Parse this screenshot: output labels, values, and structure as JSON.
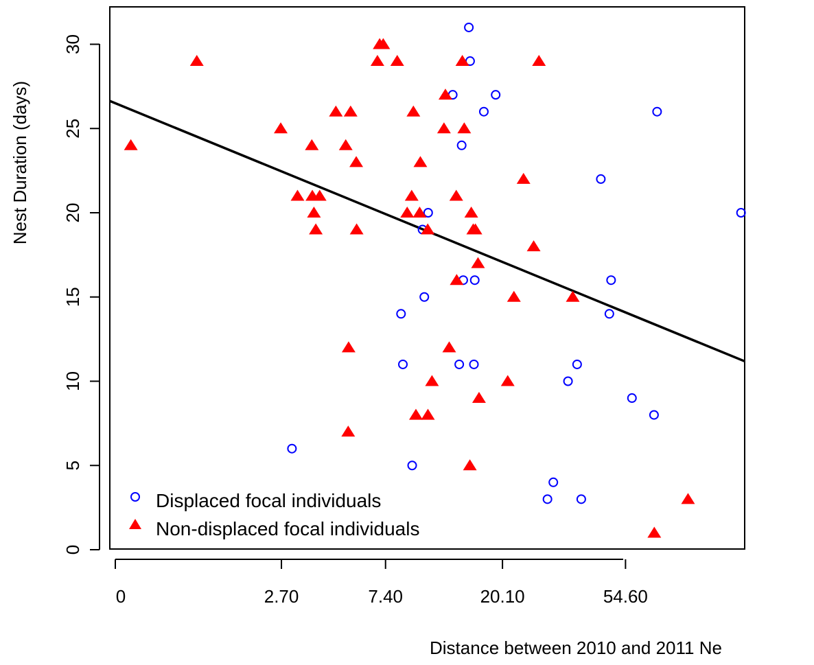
{
  "chart_data": {
    "type": "scatter",
    "xlabel": "Distance between 2010 and 2011 Ne",
    "ylabel": "Nest Duration (days)",
    "x_scale": "log(x+1)",
    "xlim": [
      0,
      148
    ],
    "ylim": [
      -0.5,
      32
    ],
    "x_ticks": [
      0,
      2.7,
      7.4,
      20.1,
      54.6
    ],
    "x_tick_labels": [
      "0",
      "2.70",
      "7.40",
      "20.10",
      "54.60"
    ],
    "y_ticks": [
      0,
      5,
      10,
      15,
      20,
      25,
      30
    ],
    "y_tick_labels": [
      "0",
      "5",
      "10",
      "15",
      "20",
      "25",
      "30"
    ],
    "legend_position": "bottom-left",
    "colors": {
      "displaced": "#0000ff",
      "non_displaced": "#ff0000",
      "line": "#000000"
    },
    "series": [
      {
        "name": "Displaced focal individuals",
        "marker": "open-circle",
        "color": "#0000ff",
        "points": [
          [
            3.02,
            6
          ],
          [
            8.49,
            14
          ],
          [
            8.63,
            11
          ],
          [
            9.36,
            5
          ],
          [
            10.4,
            15
          ],
          [
            10.75,
            20
          ],
          [
            10.24,
            19
          ],
          [
            13.26,
            27
          ],
          [
            14.3,
            24
          ],
          [
            14.49,
            16
          ],
          [
            14.01,
            11
          ],
          [
            15.19,
            31
          ],
          [
            15.35,
            29
          ],
          [
            15.96,
            16
          ],
          [
            15.85,
            11
          ],
          [
            17.22,
            26
          ],
          [
            19.0,
            27
          ],
          [
            34.35,
            10
          ],
          [
            36.98,
            11
          ],
          [
            38.24,
            3
          ],
          [
            29.07,
            3
          ],
          [
            30.49,
            4
          ],
          [
            44.78,
            22
          ],
          [
            48.63,
            16
          ],
          [
            47.96,
            14
          ],
          [
            57.5,
            9
          ],
          [
            70.3,
            26
          ],
          [
            68.6,
            8
          ],
          [
            137.1,
            20
          ]
        ]
      },
      {
        "name": "Non-displaced focal individuals",
        "marker": "filled-triangle",
        "color": "#ff0000",
        "points": [
          [
            0.13,
            24
          ],
          [
            0.9,
            29
          ],
          [
            2.68,
            25
          ],
          [
            3.2,
            21
          ],
          [
            3.7,
            24
          ],
          [
            3.72,
            21
          ],
          [
            3.78,
            20
          ],
          [
            3.85,
            19
          ],
          [
            4.0,
            21
          ],
          [
            4.68,
            26
          ],
          [
            5.14,
            24
          ],
          [
            5.38,
            26
          ],
          [
            5.28,
            12
          ],
          [
            5.26,
            7
          ],
          [
            5.67,
            23
          ],
          [
            5.69,
            19
          ],
          [
            6.88,
            29
          ],
          [
            7.02,
            30
          ],
          [
            7.25,
            30
          ],
          [
            8.21,
            29
          ],
          [
            8.96,
            20
          ],
          [
            9.32,
            21
          ],
          [
            9.46,
            26
          ],
          [
            10.05,
            23
          ],
          [
            9.99,
            20
          ],
          [
            10.71,
            19
          ],
          [
            9.67,
            8
          ],
          [
            10.73,
            8
          ],
          [
            11.11,
            10
          ],
          [
            12.31,
            25
          ],
          [
            12.46,
            27
          ],
          [
            12.87,
            12
          ],
          [
            13.66,
            21
          ],
          [
            13.71,
            16
          ],
          [
            14.38,
            29
          ],
          [
            14.61,
            25
          ],
          [
            15.5,
            20
          ],
          [
            15.76,
            19
          ],
          [
            16.05,
            19
          ],
          [
            16.4,
            17
          ],
          [
            16.54,
            9
          ],
          [
            15.32,
            5
          ],
          [
            20.99,
            10
          ],
          [
            22.09,
            15
          ],
          [
            23.9,
            22
          ],
          [
            25.98,
            18
          ],
          [
            27.12,
            29
          ],
          [
            35.7,
            15
          ],
          [
            68.75,
            1
          ],
          [
            89.98,
            3
          ]
        ]
      }
    ],
    "trend_line": {
      "intercept": 26.5,
      "slope": -3.09
    }
  }
}
